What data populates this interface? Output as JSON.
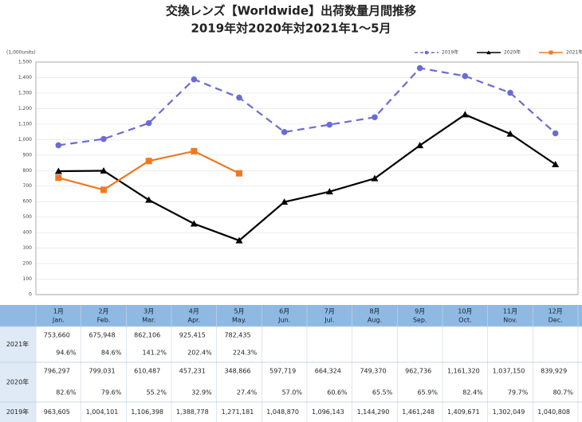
{
  "chart_data": {
    "type": "line",
    "title": "交換レンズ【Worldwide】出荷数量月間推移",
    "subtitle": "2019年対2020年対2021年1～5月",
    "ylabel": "(1,000units)",
    "categories_ja": [
      "1月",
      "2月",
      "3月",
      "4月",
      "5月",
      "6月",
      "7月",
      "8月",
      "9月",
      "10月",
      "11月",
      "12月"
    ],
    "categories": [
      "Jan.",
      "Feb.",
      "Mar.",
      "Apr.",
      "May.",
      "Jun.",
      "Jul.",
      "Aug.",
      "Sep.",
      "Oct.",
      "Nov.",
      "Dec."
    ],
    "ylim": [
      0,
      1500
    ],
    "yticks": [
      {
        "value": 0,
        "label": "0"
      },
      {
        "value": 100,
        "label": "100"
      },
      {
        "value": 200,
        "label": "200"
      },
      {
        "value": 300,
        "label": "300"
      },
      {
        "value": 400,
        "label": "400"
      },
      {
        "value": 500,
        "label": "500"
      },
      {
        "value": 600,
        "label": "600"
      },
      {
        "value": 700,
        "label": "700"
      },
      {
        "value": 800,
        "label": "800"
      },
      {
        "value": 900,
        "label": "900"
      },
      {
        "value": 1000,
        "label": "1,000"
      },
      {
        "value": 1100,
        "label": "1,100"
      },
      {
        "value": 1200,
        "label": "1,200"
      },
      {
        "value": 1300,
        "label": "1,300"
      },
      {
        "value": 1400,
        "label": "1,400"
      },
      {
        "value": 1500,
        "label": "1,500"
      }
    ],
    "grid": true,
    "legend": "top-right",
    "series": [
      {
        "name": "2019年",
        "color": "#6b6bd6",
        "dash": true,
        "marker": "circle",
        "values": [
          963.605,
          1004.101,
          1106.398,
          1388.778,
          1271.181,
          1048.87,
          1096.143,
          1144.29,
          1461.248,
          1409.671,
          1302.049,
          1040.808
        ],
        "value_labels": [
          "963,605",
          "1,004,101",
          "1,106,398",
          "1,388,778",
          "1,271,181",
          "1,048,870",
          "1,096,143",
          "1,144,290",
          "1,461,248",
          "1,409,671",
          "1,302,049",
          "1,040,808"
        ]
      },
      {
        "name": "2020年",
        "color": "#000000",
        "dash": false,
        "marker": "triangle",
        "values": [
          796.297,
          799.031,
          610.487,
          457.231,
          348.866,
          597.719,
          664.324,
          749.37,
          962.736,
          1161.32,
          1037.15,
          839.929
        ],
        "value_labels": [
          "796,297",
          "799,031",
          "610,487",
          "457,231",
          "348,866",
          "597,719",
          "664,324",
          "749,370",
          "962,736",
          "1,161,320",
          "1,037,150",
          "839,929"
        ],
        "pct_labels": [
          "82.6%",
          "79.6%",
          "55.2%",
          "32.9%",
          "27.4%",
          "57.0%",
          "60.6%",
          "65.5%",
          "65.9%",
          "82.4%",
          "79.7%",
          "80.7%"
        ]
      },
      {
        "name": "2021年",
        "color": "#f07820",
        "dash": false,
        "marker": "square",
        "values": [
          753.66,
          675.948,
          862.106,
          925.415,
          782.435,
          null,
          null,
          null,
          null,
          null,
          null,
          null
        ],
        "value_labels": [
          "753,660",
          "675,948",
          "862,106",
          "925,415",
          "782,435",
          null,
          null,
          null,
          null,
          null,
          null,
          null
        ],
        "pct_labels": [
          "94.6%",
          "84.6%",
          "141.2%",
          "202.4%",
          "224.3%",
          null,
          null,
          null,
          null,
          null,
          null,
          null
        ]
      }
    ]
  }
}
